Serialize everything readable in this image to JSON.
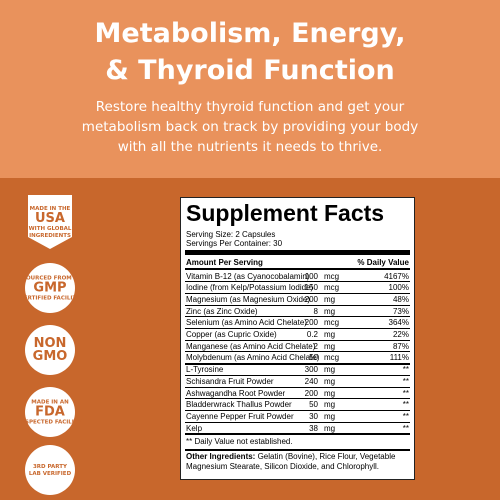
{
  "header": {
    "title": [
      "Metabolism, Energy,",
      "& Thyroid Function"
    ],
    "subtitle": [
      "Restore healthy thyroid function and get your",
      "metabolism back on track by providing your body",
      "with all the nutrients it needs to thrive."
    ]
  },
  "badges": [
    [
      "MADE IN THE",
      "USA",
      "WITH GLOBAL",
      "INGREDIENTS"
    ],
    [
      "SOURCED FROM A",
      "GMP",
      "CERTIFIED FACILITY"
    ],
    [
      "NON",
      "GMO"
    ],
    [
      "MADE IN AN",
      "FDA",
      "INSPECTED FACILITY"
    ],
    [
      "3RD PARTY",
      "LAB VERIFIED"
    ]
  ],
  "facts": {
    "title": "Supplement Facts",
    "serving_size": "Serving Size: 2 Capsules",
    "servings": "Servings Per Container: 30",
    "col_amount": "Amount Per Serving",
    "col_dv": "% Daily Value",
    "rows": [
      [
        "Vitamin B-12 (as Cyanocobalamin)",
        "100",
        "mcg",
        "4167%"
      ],
      [
        "Iodine (from Kelp/Potassium Iodide)",
        "150",
        "mcg",
        "100%"
      ],
      [
        "Magnesium (as Magnesium Oxide)",
        "200",
        "mg",
        "48%"
      ],
      [
        "Zinc (as Zinc Oxide)",
        "8",
        "mg",
        "73%"
      ],
      [
        "Selenium (as Amino Acid Chelate)",
        "200",
        "mcg",
        "364%"
      ],
      [
        "Copper (as Cupric Oxide)",
        "0.2",
        "mg",
        "22%"
      ],
      [
        "Manganese (as Amino Acid Chelate)",
        "2",
        "mg",
        "87%"
      ],
      [
        "Molybdenum (as Amino Acid Chelate)",
        "50",
        "mcg",
        "111%"
      ],
      [
        "L-Tyrosine",
        "300",
        "mg",
        "**"
      ],
      [
        "Schisandra Fruit Powder",
        "240",
        "mg",
        "**"
      ],
      [
        "Ashwagandha Root Powder",
        "200",
        "mg",
        "**"
      ],
      [
        "Bladderwrack Thallus Powder",
        "50",
        "mg",
        "**"
      ],
      [
        "Cayenne Pepper Fruit Powder",
        "30",
        "mg",
        "**"
      ],
      [
        "Kelp",
        "38",
        "mg",
        "**"
      ]
    ],
    "footnote": "** Daily Value not established.",
    "other_label": "Other Ingredients:",
    "other_text": "Gelatin (Bovine), Rice Flour, Vegetable Magnesium Stearate, Silicon Dioxide, and Chlorophyll."
  }
}
